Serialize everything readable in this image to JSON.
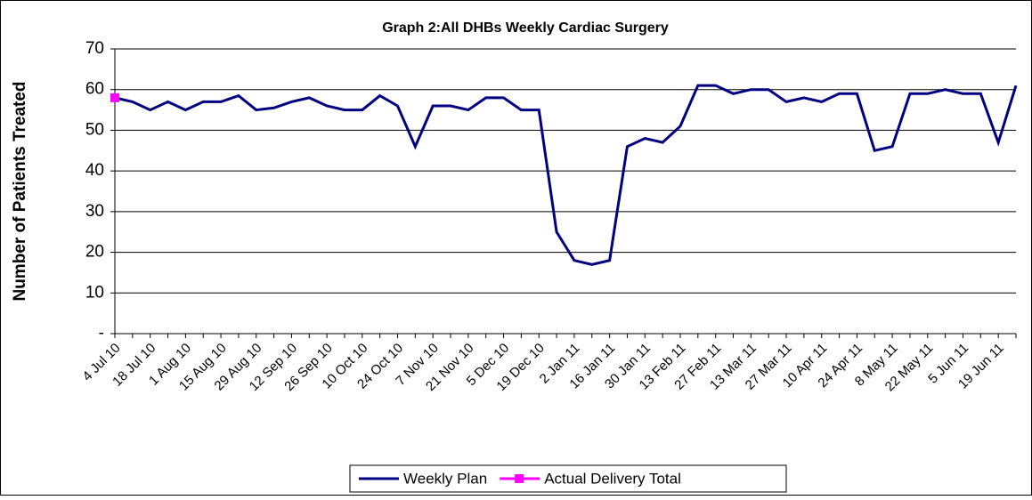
{
  "chart_data": {
    "type": "line",
    "title": "Graph 2:All DHBs Weekly Cardiac Surgery",
    "y_label": "Number of Patients Treated",
    "categories": [
      "4 Jul 10",
      null,
      "18 Jul 10",
      null,
      "1 Aug 10",
      null,
      "15 Aug 10",
      null,
      "29 Aug 10",
      null,
      "12 Sep 10",
      null,
      "26 Sep 10",
      null,
      "10 Oct 10",
      null,
      "24 Oct 10",
      null,
      "7 Nov 10",
      null,
      "21 Nov 10",
      null,
      "5 Dec 10",
      null,
      "19 Dec 10",
      null,
      "2 Jan 11",
      null,
      "16 Jan 11",
      null,
      "30 Jan 11",
      null,
      "13 Feb 11",
      null,
      "27 Feb 11",
      null,
      "13 Mar 11",
      null,
      "27 Mar 11",
      null,
      "10 Apr 11",
      null,
      "24 Apr 11",
      null,
      "8 May 11",
      null,
      "22 May 11",
      null,
      "5 Jun 11",
      null,
      "19 Jun 11",
      null
    ],
    "series": [
      {
        "name": "Weekly Plan",
        "color": "#000080",
        "values": [
          58,
          57,
          55,
          57,
          55,
          57,
          57,
          58.5,
          55,
          55.5,
          57,
          58,
          56,
          55,
          55,
          58.5,
          56,
          46,
          56,
          56,
          55,
          58,
          58,
          55,
          55,
          25,
          18,
          17,
          18,
          46,
          48,
          47,
          51,
          61,
          61,
          59,
          60,
          60,
          57,
          58,
          57,
          59,
          59,
          45,
          46,
          59,
          59,
          60,
          59,
          59,
          47,
          61
        ]
      },
      {
        "name": "Actual Delivery Total",
        "color": "#ff00ff",
        "values": [
          58,
          null,
          null,
          null,
          null,
          null,
          null,
          null,
          null,
          null,
          null,
          null,
          null,
          null,
          null,
          null,
          null,
          null,
          null,
          null,
          null,
          null,
          null,
          null,
          null,
          null,
          null,
          null,
          null,
          null,
          null,
          null,
          null,
          null,
          null,
          null,
          null,
          null,
          null,
          null,
          null,
          null,
          null,
          null,
          null,
          null,
          null,
          null,
          null,
          null,
          null,
          null
        ]
      }
    ],
    "ylim": [
      0,
      70
    ],
    "yticks": [
      {
        "value": 0,
        "label": "-"
      },
      10,
      20,
      30,
      40,
      50,
      60,
      70
    ],
    "grid": true
  }
}
